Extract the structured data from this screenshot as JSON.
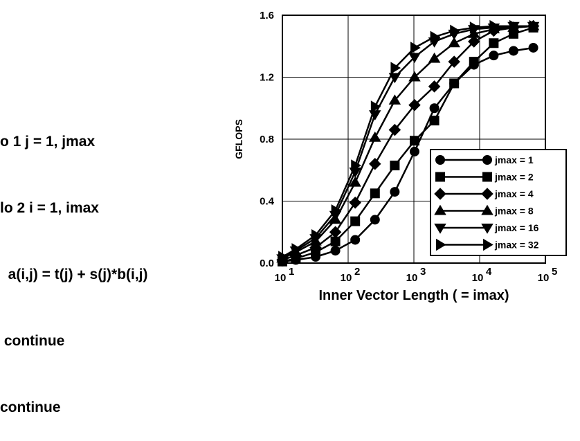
{
  "code_lines": [
    "o 1 j = 1, jmax",
    "lo 2 i = 1, imax",
    "  a(i,j) = t(j) + s(j)*b(i,j)",
    " continue",
    "continue"
  ],
  "chart_data": {
    "type": "line",
    "title": "",
    "xlabel": "Inner Vector Length ( = imax)",
    "ylabel": "GFLOPS",
    "xscale": "log",
    "xlim": [
      10,
      100000
    ],
    "ylim": [
      0,
      1.6
    ],
    "grid": true,
    "x_ticks": [
      {
        "value": 10,
        "base": "10",
        "exp": "1"
      },
      {
        "value": 100,
        "base": "10",
        "exp": "2"
      },
      {
        "value": 1000,
        "base": "10",
        "exp": "3"
      },
      {
        "value": 10000,
        "base": "10",
        "exp": "4"
      },
      {
        "value": 100000,
        "base": "10",
        "exp": "5"
      }
    ],
    "y_ticks": [
      "0.0",
      "0.4",
      "0.8",
      "1.2",
      "1.6"
    ],
    "legend_position": "bottom-right",
    "x": [
      10,
      16,
      32,
      64,
      128,
      256,
      512,
      1024,
      2048,
      4096,
      8192,
      16384,
      32768,
      65536
    ],
    "series": [
      {
        "name": "jmax = 1",
        "marker": "circle",
        "values": [
          0.01,
          0.02,
          0.04,
          0.08,
          0.15,
          0.28,
          0.46,
          0.72,
          1.0,
          1.16,
          1.28,
          1.34,
          1.37,
          1.39
        ]
      },
      {
        "name": "jmax = 2",
        "marker": "square",
        "values": [
          0.01,
          0.03,
          0.07,
          0.14,
          0.27,
          0.45,
          0.63,
          0.79,
          0.92,
          1.16,
          1.3,
          1.42,
          1.48,
          1.52
        ]
      },
      {
        "name": "jmax = 4",
        "marker": "diamond",
        "values": [
          0.02,
          0.05,
          0.1,
          0.2,
          0.39,
          0.64,
          0.86,
          1.02,
          1.14,
          1.3,
          1.43,
          1.5,
          1.52,
          1.53
        ]
      },
      {
        "name": "jmax = 8",
        "marker": "triangle-up",
        "values": [
          0.03,
          0.07,
          0.14,
          0.28,
          0.52,
          0.81,
          1.05,
          1.2,
          1.32,
          1.42,
          1.48,
          1.51,
          1.52,
          1.53
        ]
      },
      {
        "name": "jmax = 16",
        "marker": "triangle-down",
        "values": [
          0.03,
          0.08,
          0.16,
          0.31,
          0.59,
          0.96,
          1.2,
          1.33,
          1.43,
          1.48,
          1.51,
          1.52,
          1.53,
          1.53
        ]
      },
      {
        "name": "jmax = 32",
        "marker": "triangle-right",
        "values": [
          0.04,
          0.09,
          0.18,
          0.34,
          0.63,
          1.01,
          1.26,
          1.39,
          1.46,
          1.5,
          1.52,
          1.53,
          1.53,
          1.53
        ]
      }
    ]
  }
}
